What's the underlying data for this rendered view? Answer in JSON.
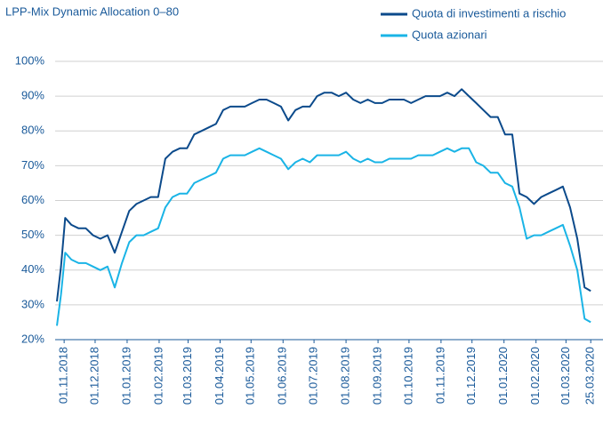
{
  "chart_data": {
    "type": "line",
    "subtitle": "LPP-Mix Dynamic Allocation 0–80",
    "x": [
      "25.10.2018",
      "29.10.2018",
      "02.11.2018",
      "08.11.2018",
      "15.11.2018",
      "22.11.2018",
      "29.11.2018",
      "06.12.2018",
      "13.12.2018",
      "20.12.2018",
      "27.12.2018",
      "03.01.2019",
      "10.01.2019",
      "17.01.2019",
      "24.01.2019",
      "31.01.2019",
      "07.02.2019",
      "14.02.2019",
      "21.02.2019",
      "28.02.2019",
      "07.03.2019",
      "14.03.2019",
      "21.03.2019",
      "28.03.2019",
      "04.04.2019",
      "11.04.2019",
      "18.04.2019",
      "25.04.2019",
      "02.05.2019",
      "09.05.2019",
      "16.05.2019",
      "23.05.2019",
      "30.05.2019",
      "06.06.2019",
      "13.06.2019",
      "20.06.2019",
      "27.06.2019",
      "04.07.2019",
      "11.07.2019",
      "18.07.2019",
      "25.07.2019",
      "01.08.2019",
      "08.08.2019",
      "15.08.2019",
      "22.08.2019",
      "29.08.2019",
      "05.09.2019",
      "12.09.2019",
      "19.09.2019",
      "26.09.2019",
      "03.10.2019",
      "10.10.2019",
      "17.10.2019",
      "24.10.2019",
      "31.10.2019",
      "07.11.2019",
      "14.11.2019",
      "21.11.2019",
      "28.11.2019",
      "05.12.2019",
      "12.12.2019",
      "19.12.2019",
      "26.12.2019",
      "02.01.2020",
      "09.01.2020",
      "16.01.2020",
      "23.01.2020",
      "30.01.2020",
      "06.02.2020",
      "13.02.2020",
      "20.02.2020",
      "27.02.2020",
      "05.03.2020",
      "12.03.2020",
      "19.03.2020",
      "25.03.2020"
    ],
    "series": [
      {
        "name": "Quota di investimenti a rischio",
        "color": "#0b4a8b",
        "values": [
          31,
          41,
          55,
          53,
          52,
          52,
          50,
          49,
          50,
          45,
          51,
          57,
          59,
          60,
          61,
          61,
          72,
          74,
          75,
          75,
          79,
          80,
          81,
          82,
          86,
          87,
          87,
          87,
          88,
          89,
          89,
          88,
          87,
          83,
          86,
          87,
          87,
          90,
          91,
          91,
          90,
          91,
          89,
          88,
          89,
          88,
          88,
          89,
          89,
          89,
          88,
          89,
          90,
          90,
          90,
          91,
          90,
          92,
          90,
          88,
          86,
          84,
          84,
          79,
          79,
          62,
          61,
          59,
          61,
          62,
          63,
          64,
          58,
          49,
          35,
          34
        ]
      },
      {
        "name": "Quota azionari",
        "color": "#1ab4e6",
        "values": [
          24,
          33,
          45,
          43,
          42,
          42,
          41,
          40,
          41,
          35,
          42,
          48,
          50,
          50,
          51,
          52,
          58,
          61,
          62,
          62,
          65,
          66,
          67,
          68,
          72,
          73,
          73,
          73,
          74,
          75,
          74,
          73,
          72,
          69,
          71,
          72,
          71,
          73,
          73,
          73,
          73,
          74,
          72,
          71,
          72,
          71,
          71,
          72,
          72,
          72,
          72,
          73,
          73,
          73,
          74,
          75,
          74,
          75,
          75,
          71,
          70,
          68,
          68,
          65,
          64,
          58,
          49,
          50,
          50,
          51,
          52,
          53,
          47,
          40,
          26,
          25
        ]
      }
    ],
    "xlim": [
      "25.10.2018",
      "05.04.2020"
    ],
    "xticks": [
      "01.11.2018",
      "01.12.2018",
      "01.01.2019",
      "01.02.2019",
      "01.03.2019",
      "01.04.2019",
      "01.05.2019",
      "01.06.2019",
      "01.07.2019",
      "01.08.2019",
      "01.09.2019",
      "01.10.2019",
      "01.11.2019",
      "01.12.2019",
      "01.01.2020",
      "01.02.2020",
      "01.03.2020",
      "25.03.2020"
    ],
    "ylim": [
      20,
      100
    ],
    "yticks": [
      {
        "value": 20,
        "label": "20%"
      },
      {
        "value": 30,
        "label": "30%"
      },
      {
        "value": 40,
        "label": "40%"
      },
      {
        "value": 50,
        "label": "50%"
      },
      {
        "value": 60,
        "label": "60%"
      },
      {
        "value": 70,
        "label": "70%"
      },
      {
        "value": 80,
        "label": "80%"
      },
      {
        "value": 90,
        "label": "90%"
      },
      {
        "value": 100,
        "label": "100%"
      }
    ],
    "grid": true
  }
}
